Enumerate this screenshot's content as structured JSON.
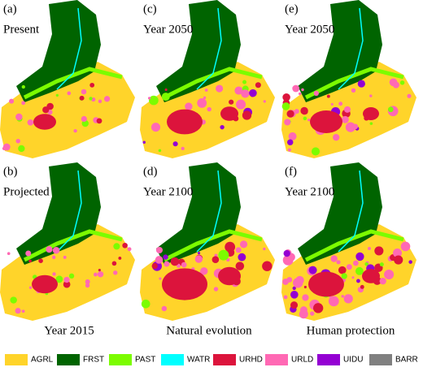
{
  "panels": [
    {
      "letter": "(a)",
      "label": "Present"
    },
    {
      "letter": "(b)",
      "label": "Projected"
    },
    {
      "letter": "(c)",
      "label": "Year 2050"
    },
    {
      "letter": "(d)",
      "label": "Year 2100"
    },
    {
      "letter": "(e)",
      "label": "Year 2050"
    },
    {
      "letter": "(f)",
      "label": "Year 2100"
    }
  ],
  "captions": [
    "Year 2015",
    "Natural evolution",
    "Human protection"
  ],
  "legend": [
    {
      "name": "AGRL",
      "color": "#ffd42a"
    },
    {
      "name": "FRST",
      "color": "#006400"
    },
    {
      "name": "PAST",
      "color": "#7cfc00"
    },
    {
      "name": "WATR",
      "color": "#00ffff"
    },
    {
      "name": "URHD",
      "color": "#dc143c"
    },
    {
      "name": "URLD",
      "color": "#ff69b4"
    },
    {
      "name": "UIDU",
      "color": "#9400d3"
    },
    {
      "name": "BARR",
      "color": "#808080"
    }
  ]
}
